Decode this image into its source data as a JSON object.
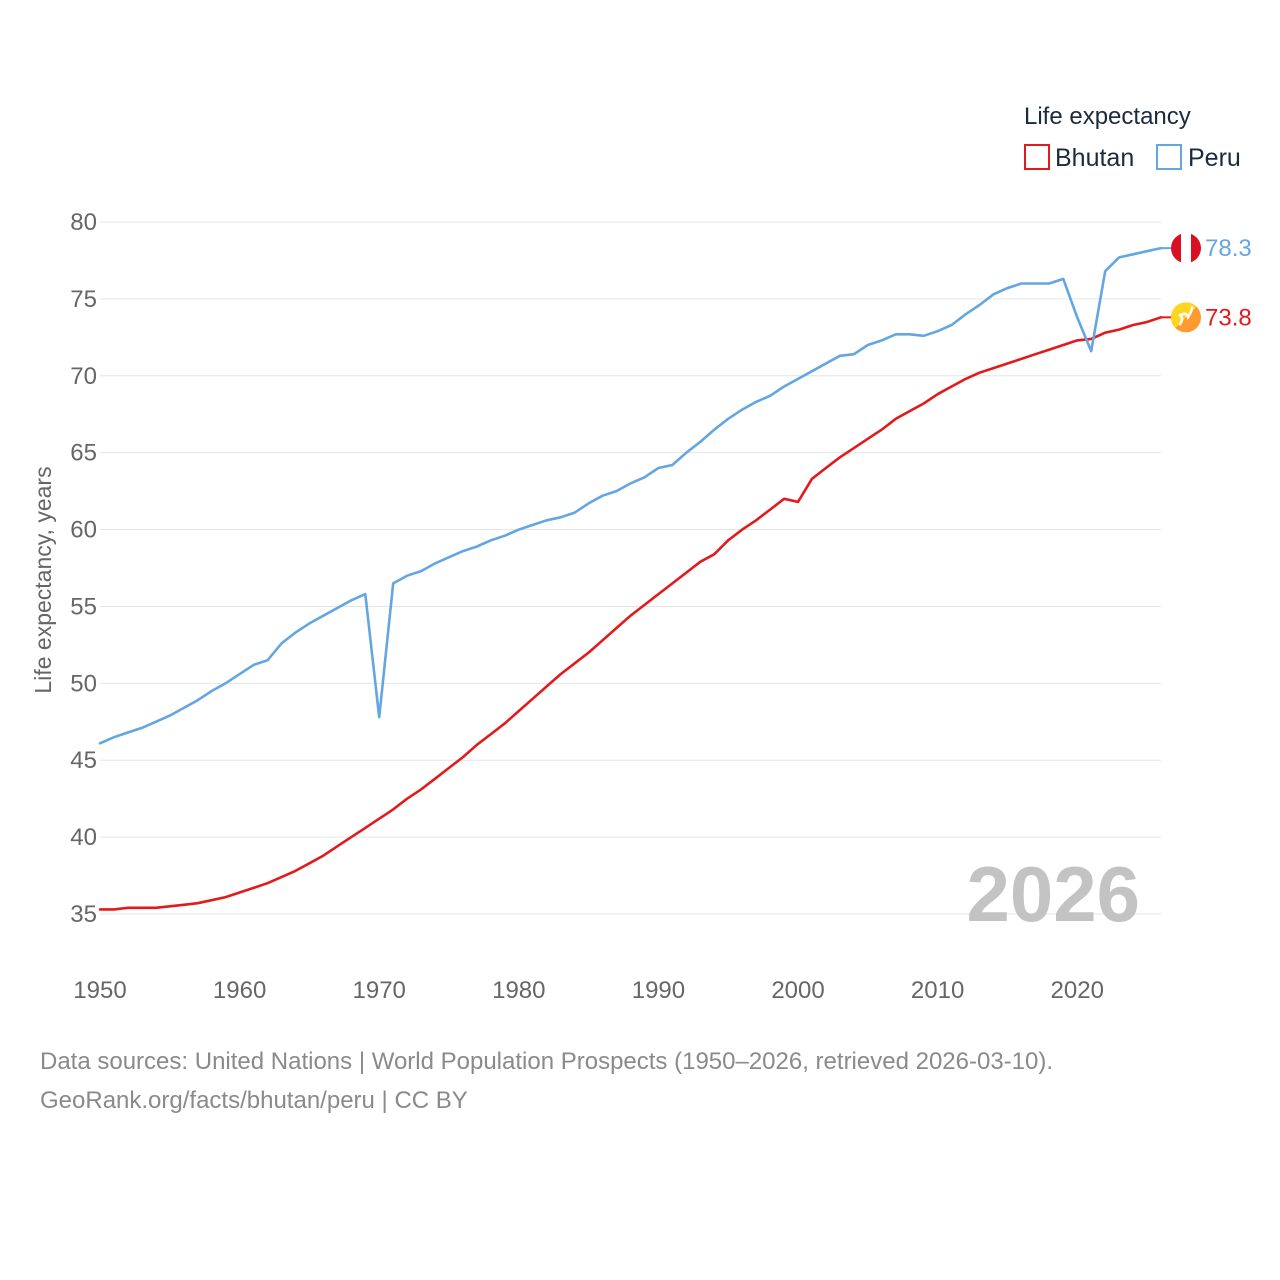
{
  "chart_data": {
    "type": "line",
    "title": "",
    "xlabel": "",
    "ylabel": "Life expectancy, years",
    "xlim": [
      1950,
      2026
    ],
    "ylim": [
      32.5,
      81
    ],
    "grid": true,
    "x_ticks": [
      1950,
      1960,
      1970,
      1980,
      1990,
      2000,
      2010,
      2020
    ],
    "y_ticks": [
      35,
      40,
      45,
      50,
      55,
      60,
      65,
      70,
      75,
      80
    ],
    "legend": {
      "title": "Life expectancy",
      "position": "top-right",
      "entries": [
        "Bhutan",
        "Peru"
      ]
    },
    "current_year_label": "2026",
    "x": [
      1950,
      1951,
      1952,
      1953,
      1954,
      1955,
      1956,
      1957,
      1958,
      1959,
      1960,
      1961,
      1962,
      1963,
      1964,
      1965,
      1966,
      1967,
      1968,
      1969,
      1970,
      1971,
      1972,
      1973,
      1974,
      1975,
      1976,
      1977,
      1978,
      1979,
      1980,
      1981,
      1982,
      1983,
      1984,
      1985,
      1986,
      1987,
      1988,
      1989,
      1990,
      1991,
      1992,
      1993,
      1994,
      1995,
      1996,
      1997,
      1998,
      1999,
      2000,
      2001,
      2002,
      2003,
      2004,
      2005,
      2006,
      2007,
      2008,
      2009,
      2010,
      2011,
      2012,
      2013,
      2014,
      2015,
      2016,
      2017,
      2018,
      2019,
      2020,
      2021,
      2022,
      2023,
      2024,
      2025,
      2026
    ],
    "series": [
      {
        "name": "Bhutan",
        "color": "#e31a1c",
        "end_label": "73.8",
        "flag": "bhutan-flag",
        "values": [
          35.3,
          35.3,
          35.4,
          35.4,
          35.4,
          35.5,
          35.6,
          35.7,
          35.9,
          36.1,
          36.4,
          36.7,
          37.0,
          37.4,
          37.8,
          38.3,
          38.8,
          39.4,
          40.0,
          40.6,
          41.2,
          41.8,
          42.5,
          43.1,
          43.8,
          44.5,
          45.2,
          46.0,
          46.7,
          47.4,
          48.2,
          49.0,
          49.8,
          50.6,
          51.3,
          52.0,
          52.8,
          53.6,
          54.4,
          55.1,
          55.8,
          56.5,
          57.2,
          57.9,
          58.4,
          59.3,
          60.0,
          60.6,
          61.3,
          62.0,
          61.8,
          63.3,
          64.0,
          64.7,
          65.3,
          65.9,
          66.5,
          67.2,
          67.7,
          68.2,
          68.8,
          69.3,
          69.8,
          70.2,
          70.5,
          70.8,
          71.1,
          71.4,
          71.7,
          72.0,
          72.3,
          72.4,
          72.8,
          73.0,
          73.3,
          73.5,
          73.8
        ]
      },
      {
        "name": "Peru",
        "color": "#64a6e1",
        "end_label": "78.3",
        "flag": "peru-flag",
        "values": [
          46.1,
          46.5,
          46.8,
          47.1,
          47.5,
          47.9,
          48.4,
          48.9,
          49.5,
          50.0,
          50.6,
          51.2,
          51.5,
          52.6,
          53.3,
          53.9,
          54.4,
          54.9,
          55.4,
          55.8,
          47.8,
          56.5,
          57.0,
          57.3,
          57.8,
          58.2,
          58.6,
          58.9,
          59.3,
          59.6,
          60.0,
          60.3,
          60.6,
          60.8,
          61.1,
          61.7,
          62.2,
          62.5,
          63.0,
          63.4,
          64.0,
          64.2,
          65.0,
          65.7,
          66.5,
          67.2,
          67.8,
          68.3,
          68.7,
          69.3,
          69.8,
          70.3,
          70.8,
          71.3,
          71.4,
          72.0,
          72.3,
          72.7,
          72.7,
          72.6,
          72.9,
          73.3,
          74.0,
          74.6,
          75.3,
          75.7,
          76.0,
          76.0,
          76.0,
          76.3,
          73.8,
          71.6,
          76.8,
          77.7,
          77.9,
          78.1,
          78.3
        ]
      }
    ],
    "sources": "Data sources: United Nations | World Population Prospects (1950–2026, retrieved 2026-03-10).",
    "credit": "GeoRank.org/facts/bhutan/peru | CC BY"
  }
}
